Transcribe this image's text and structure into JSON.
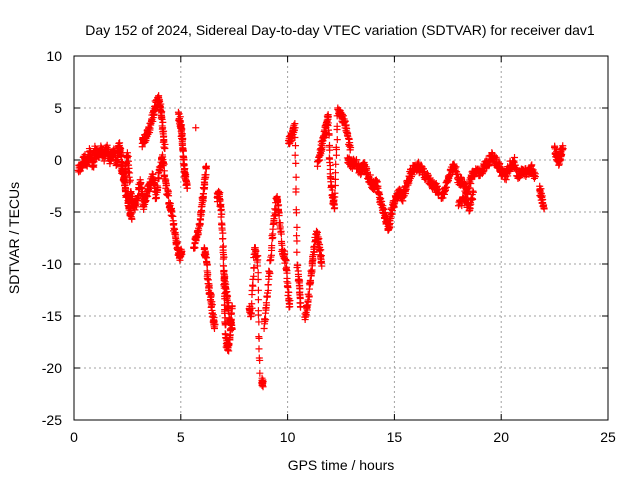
{
  "chart_data": {
    "type": "scatter",
    "title": "Day 152 of 2024, Sidereal Day-to-day VTEC variation (SDTVAR) for receiver dav1",
    "xlabel": "GPS time / hours",
    "ylabel": "SDTVAR / TECUs",
    "xlim": [
      0,
      25
    ],
    "ylim": [
      -25,
      10
    ],
    "xticks": [
      0,
      5,
      10,
      15,
      20,
      25
    ],
    "yticks": [
      -25,
      -20,
      -15,
      -10,
      -5,
      0,
      5,
      10
    ],
    "grid": true,
    "marker": "+",
    "color": "#ff0000",
    "series": [
      {
        "name": "SDTVAR",
        "segments": [
          {
            "x": [
              0.2,
              0.35,
              0.5,
              0.6,
              0.75,
              0.9,
              1.0,
              1.1,
              1.25,
              1.4,
              1.55,
              1.7,
              1.85,
              2.0,
              2.1,
              2.2,
              2.3,
              2.4,
              2.5,
              2.6,
              2.7
            ],
            "y": [
              -1.0,
              -0.6,
              0.3,
              -0.5,
              0.8,
              -0.6,
              1.1,
              0.4,
              1.0,
              0.2,
              1.2,
              -0.1,
              0.9,
              -0.3,
              1.6,
              0.7,
              -1.4,
              -2.8,
              -3.6,
              -4.6,
              -5.6
            ]
          },
          {
            "x": [
              2.2,
              2.35,
              2.5,
              2.65,
              2.8,
              2.95,
              3.1,
              3.25,
              3.4,
              3.55,
              3.7,
              3.85,
              4.0,
              4.15,
              4.3,
              4.45,
              4.6,
              4.75,
              4.85,
              4.95,
              5.05
            ],
            "y": [
              -0.6,
              -1.8,
              0.7,
              -3.2,
              -4.6,
              -3.9,
              -1.9,
              -4.4,
              -3.4,
              -2.4,
              -1.4,
              -3.6,
              -0.9,
              0.3,
              -2.2,
              -4.1,
              -5.4,
              -7.4,
              -8.6,
              -9.3,
              -8.8
            ]
          },
          {
            "x": [
              3.2,
              3.35,
              3.5,
              3.65,
              3.8,
              3.95,
              4.05,
              4.15,
              4.25
            ],
            "y": [
              1.6,
              2.2,
              2.9,
              3.9,
              5.2,
              6.0,
              5.1,
              3.1,
              1.1
            ]
          },
          {
            "x": [
              4.9,
              5.0,
              5.05,
              5.1,
              5.15,
              5.2,
              5.3
            ],
            "y": [
              4.4,
              3.4,
              2.3,
              1.1,
              -0.4,
              -1.6,
              -2.7
            ]
          },
          {
            "x": [
              5.7
            ],
            "y": [
              3.1
            ]
          },
          {
            "x": [
              5.6,
              5.75,
              5.9,
              6.0,
              6.1,
              6.2
            ],
            "y": [
              -8.4,
              -7.3,
              -6.1,
              -4.1,
              -2.4,
              -0.6
            ]
          },
          {
            "x": [
              6.1,
              6.2,
              6.3,
              6.4,
              6.5,
              6.6
            ],
            "y": [
              -8.6,
              -9.4,
              -12.3,
              -13.2,
              -15.1,
              -15.8
            ]
          },
          {
            "x": [
              6.7,
              6.8,
              6.9,
              7.0,
              7.05,
              7.1,
              7.2,
              7.3,
              7.4
            ],
            "y": [
              -3.6,
              -3.3,
              -5.2,
              -9.1,
              -13.1,
              -17.1,
              -18.3,
              -17.1,
              -14.1
            ]
          },
          {
            "x": [
              7.0,
              7.1,
              7.2,
              7.3,
              7.4
            ],
            "y": [
              -10.2,
              -12.3,
              -13.7,
              -15.6,
              -16.2
            ]
          },
          {
            "x": [
              8.2,
              8.3,
              8.45,
              8.6,
              8.7
            ],
            "y": [
              -14.3,
              -14.8,
              -8.6,
              -9.6,
              -20.5
            ]
          },
          {
            "x": [
              8.8,
              8.85
            ],
            "y": [
              -21.2,
              -21.8
            ]
          },
          {
            "x": [
              8.9,
              9.05,
              9.2,
              9.35,
              9.5,
              9.6,
              9.75,
              9.9,
              10.0,
              10.1
            ],
            "y": [
              -16.2,
              -13.1,
              -9.6,
              -6.1,
              -3.6,
              -5.1,
              -8.6,
              -9.6,
              -12.1,
              -14.1
            ]
          },
          {
            "x": [
              10.05,
              10.2,
              10.35,
              10.45,
              10.55,
              10.6
            ],
            "y": [
              1.6,
              2.4,
              3.1,
              -10.1,
              -12.1,
              -14.1
            ]
          },
          {
            "x": [
              10.8,
              10.95,
              11.1,
              11.2,
              11.35,
              11.5,
              11.6
            ],
            "y": [
              -15.1,
              -13.6,
              -11.1,
              -9.1,
              -7.1,
              -8.4,
              -10.2
            ]
          },
          {
            "x": [
              11.4,
              11.55,
              11.7,
              11.8,
              11.9,
              12.0,
              12.1,
              12.2,
              12.35,
              12.5,
              12.65,
              12.8,
              12.95
            ],
            "y": [
              -0.6,
              1.1,
              2.2,
              3.1,
              4.2,
              -1.6,
              -3.6,
              -4.6,
              5.0,
              4.4,
              3.6,
              2.4,
              1.2
            ]
          },
          {
            "x": [
              12.8,
              13.0,
              13.2,
              13.4,
              13.6,
              13.8,
              14.0,
              14.15,
              14.3,
              14.45,
              14.6,
              14.7,
              14.8
            ],
            "y": [
              0.2,
              -0.4,
              -0.3,
              -1.1,
              -0.6,
              -1.6,
              -2.6,
              -2.1,
              -3.6,
              -4.6,
              -5.6,
              -6.6,
              -6.1
            ]
          },
          {
            "x": [
              14.8,
              14.95,
              15.1,
              15.25,
              15.4,
              15.55,
              15.7,
              15.9,
              16.1,
              16.3,
              16.5,
              16.7,
              16.9,
              17.1
            ],
            "y": [
              -5.4,
              -4.4,
              -3.6,
              -3.1,
              -3.6,
              -2.6,
              -1.6,
              -0.8,
              -0.6,
              -1.1,
              -1.6,
              -2.1,
              -2.6,
              -3.1
            ]
          },
          {
            "x": [
              17.2,
              17.4,
              17.6,
              17.8,
              18.0,
              18.2,
              18.4,
              18.6,
              18.8,
              19.0,
              19.2,
              19.4,
              19.6,
              19.8,
              20.0
            ],
            "y": [
              -3.6,
              -2.6,
              -1.4,
              -0.6,
              -1.9,
              -2.2,
              -3.1,
              -1.6,
              -1.1,
              -1.3,
              -0.6,
              -0.2,
              0.4,
              -0.3,
              -0.9
            ]
          },
          {
            "x": [
              18.0,
              18.3,
              18.5,
              18.7
            ],
            "y": [
              -4.4,
              -3.6,
              -4.9,
              -3.1
            ]
          },
          {
            "x": [
              20.0,
              20.2,
              20.4,
              20.6,
              20.8,
              21.0,
              21.2,
              21.4,
              21.6
            ],
            "y": [
              -1.1,
              -1.6,
              -0.6,
              -0.1,
              -1.6,
              -0.9,
              -1.4,
              -0.6,
              -1.6
            ]
          },
          {
            "x": [
              21.8,
              21.9,
              22.0
            ],
            "y": [
              -2.9,
              -3.6,
              -4.6
            ]
          },
          {
            "x": [
              22.5,
              22.6,
              22.7,
              22.8,
              22.9
            ],
            "y": [
              1.2,
              0.4,
              -0.2,
              0.8,
              1.1
            ]
          }
        ]
      }
    ]
  }
}
